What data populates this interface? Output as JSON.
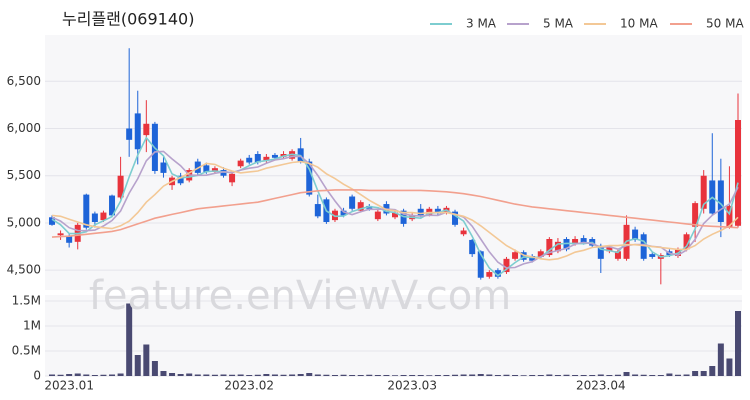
{
  "chart_data": {
    "type": "candlestick",
    "title": "누리플랜(069140)",
    "watermark": "feature.enViewV.com",
    "categories": [
      null,
      null,
      "2023.01",
      null,
      null,
      null,
      null,
      null,
      null,
      null,
      null,
      null,
      null,
      null,
      null,
      null,
      null,
      null,
      null,
      null,
      null,
      null,
      null,
      "2023.02",
      null,
      null,
      null,
      null,
      null,
      null,
      null,
      null,
      null,
      null,
      null,
      null,
      null,
      null,
      null,
      null,
      null,
      null,
      "2023.03",
      null,
      null,
      null,
      null,
      null,
      null,
      null,
      null,
      null,
      null,
      null,
      null,
      null,
      null,
      null,
      null,
      null,
      null,
      null,
      null,
      null,
      "2023.04",
      null,
      null,
      null,
      null,
      null,
      null,
      null,
      null,
      null,
      null,
      null,
      null,
      null,
      null,
      null,
      null
    ],
    "open": [
      5060,
      4870,
      4860,
      4800,
      5300,
      5100,
      5030,
      5290,
      5270,
      6000,
      6160,
      5930,
      6050,
      5640,
      5400,
      5500,
      5450,
      5650,
      5610,
      5540,
      5560,
      5430,
      5600,
      5690,
      5730,
      5660,
      5720,
      5700,
      5680,
      5790,
      5650,
      5200,
      5250,
      5030,
      5130,
      5280,
      5130,
      5180,
      5040,
      5200,
      5060,
      5130,
      5040,
      5150,
      5090,
      5150,
      5110,
      5120,
      4880,
      4820,
      4700,
      4430,
      4500,
      4480,
      4620,
      4690,
      4650,
      4640,
      4660,
      4700,
      4830,
      4780,
      4840,
      4830,
      4760,
      4700,
      4620,
      4620,
      4930,
      4880,
      4670,
      4620,
      4700,
      4650,
      4720,
      4960,
      5150,
      5450,
      5450,
      4960,
      4970
    ],
    "high": [
      5080,
      4920,
      4880,
      5000,
      5310,
      5120,
      5130,
      5300,
      5700,
      6850,
      6400,
      6300,
      6070,
      5700,
      5500,
      5530,
      5580,
      5680,
      5640,
      5600,
      5590,
      5530,
      5680,
      5720,
      5760,
      5730,
      5740,
      5760,
      5780,
      5900,
      5680,
      5300,
      5270,
      5150,
      5160,
      5300,
      5240,
      5200,
      5140,
      5230,
      5130,
      5150,
      5100,
      5200,
      5170,
      5180,
      5180,
      5140,
      4950,
      4830,
      4710,
      4500,
      4520,
      4640,
      4720,
      4710,
      4670,
      4720,
      4850,
      4840,
      4850,
      4860,
      4870,
      4850,
      4780,
      4760,
      4720,
      5080,
      4960,
      4900,
      4690,
      4680,
      4720,
      4740,
      4900,
      5230,
      5560,
      5950,
      5680,
      5600,
      6370
    ],
    "low": [
      4970,
      4820,
      4740,
      4720,
      4930,
      4950,
      5010,
      5070,
      5250,
      5700,
      5620,
      5750,
      5520,
      5480,
      5350,
      5400,
      5430,
      5510,
      5520,
      5520,
      5480,
      5390,
      5580,
      5620,
      5620,
      5640,
      5670,
      5680,
      5660,
      5630,
      5280,
      5050,
      4990,
      5010,
      5060,
      5130,
      5110,
      5130,
      5020,
      5080,
      5040,
      4960,
      5020,
      5060,
      5070,
      5080,
      5090,
      4960,
      4860,
      4640,
      4400,
      4410,
      4410,
      4460,
      4600,
      4590,
      4580,
      4620,
      4640,
      4680,
      4700,
      4760,
      4770,
      4740,
      4470,
      4680,
      4600,
      4600,
      4800,
      4600,
      4620,
      4350,
      4640,
      4630,
      4700,
      4800,
      5100,
      5080,
      4850,
      4940,
      4950
    ],
    "close": [
      4980,
      4890,
      4790,
      4980,
      4950,
      5010,
      5110,
      5080,
      5500,
      5880,
      5780,
      6050,
      5550,
      5530,
      5480,
      5420,
      5560,
      5530,
      5540,
      5580,
      5500,
      5520,
      5660,
      5640,
      5640,
      5700,
      5690,
      5730,
      5760,
      5650,
      5300,
      5070,
      5010,
      5130,
      5080,
      5150,
      5220,
      5150,
      5120,
      5100,
      5110,
      4990,
      5080,
      5080,
      5150,
      5100,
      5160,
      4980,
      4920,
      4670,
      4420,
      4480,
      4430,
      4620,
      4690,
      4610,
      4600,
      4700,
      4830,
      4800,
      4720,
      4830,
      4790,
      4760,
      4620,
      4740,
      4700,
      4980,
      4820,
      4620,
      4640,
      4660,
      4660,
      4720,
      4880,
      5210,
      5500,
      5100,
      5010,
      5180,
      6090
    ],
    "up_color": "#e8333c",
    "down_color": "#1e64d8",
    "series": [
      {
        "name": "3 MA",
        "color": "#7dcdd0",
        "values": [
          5040,
          4980,
          4887,
          4887,
          4907,
          4980,
          5023,
          5067,
          5230,
          5487,
          5720,
          5903,
          5793,
          5710,
          5520,
          5477,
          5487,
          5503,
          5543,
          5550,
          5540,
          5533,
          5560,
          5607,
          5647,
          5660,
          5677,
          5707,
          5727,
          5713,
          5570,
          5340,
          5127,
          5070,
          5073,
          5120,
          5150,
          5173,
          5163,
          5123,
          5110,
          5067,
          5060,
          5050,
          5103,
          5110,
          5137,
          5080,
          5020,
          4857,
          4670,
          4523,
          4443,
          4510,
          4580,
          4640,
          4633,
          4637,
          4710,
          4777,
          4783,
          4783,
          4780,
          4793,
          4723,
          4707,
          4687,
          4807,
          4833,
          4807,
          4693,
          4640,
          4653,
          4680,
          4753,
          4937,
          5197,
          5270,
          5203,
          5097,
          5427
        ]
      },
      {
        "name": "5 MA",
        "color": "#b7a2cc",
        "values": [
          5060,
          5020,
          4950,
          4920,
          4918,
          4924,
          4968,
          5026,
          5126,
          5316,
          5470,
          5658,
          5752,
          5758,
          5678,
          5606,
          5508,
          5504,
          5506,
          5526,
          5542,
          5534,
          5560,
          5580,
          5592,
          5632,
          5666,
          5680,
          5704,
          5706,
          5626,
          5502,
          5358,
          5232,
          5118,
          5088,
          5118,
          5146,
          5144,
          5148,
          5140,
          5094,
          5080,
          5072,
          5082,
          5080,
          5114,
          5094,
          5062,
          4966,
          4830,
          4694,
          4584,
          4524,
          4528,
          4566,
          4590,
          4644,
          4686,
          4708,
          4730,
          4776,
          4794,
          4780,
          4744,
          4748,
          4722,
          4760,
          4772,
          4772,
          4752,
          4744,
          4680,
          4660,
          4712,
          4826,
          4994,
          5082,
          5142,
          5200,
          5378
        ]
      },
      {
        "name": "10 MA",
        "color": "#f3c896",
        "values": [
          5080,
          5070,
          5040,
          5010,
          4980,
          4960,
          4950,
          4940,
          4970,
          5020,
          5110,
          5220,
          5300,
          5390,
          5440,
          5480,
          5530,
          5580,
          5630,
          5620,
          5580,
          5550,
          5530,
          5540,
          5550,
          5580,
          5600,
          5620,
          5640,
          5650,
          5630,
          5590,
          5520,
          5470,
          5410,
          5360,
          5300,
          5240,
          5190,
          5140,
          5130,
          5110,
          5110,
          5100,
          5110,
          5110,
          5110,
          5090,
          5070,
          5030,
          4970,
          4900,
          4830,
          4760,
          4710,
          4660,
          4640,
          4620,
          4610,
          4620,
          4650,
          4690,
          4710,
          4740,
          4750,
          4760,
          4760,
          4770,
          4770,
          4760,
          4750,
          4740,
          4730,
          4720,
          4720,
          4760,
          4830,
          4880,
          4920,
          4970,
          5060
        ]
      },
      {
        "name": "50 MA",
        "color": "#f2a08e",
        "values": [
          4850,
          4855,
          4860,
          4870,
          4880,
          4890,
          4900,
          4910,
          4930,
          4960,
          4990,
          5020,
          5050,
          5070,
          5090,
          5110,
          5130,
          5150,
          5160,
          5170,
          5180,
          5190,
          5200,
          5210,
          5220,
          5240,
          5260,
          5280,
          5300,
          5320,
          5330,
          5340,
          5345,
          5350,
          5350,
          5350,
          5350,
          5345,
          5345,
          5345,
          5345,
          5345,
          5345,
          5345,
          5340,
          5335,
          5330,
          5320,
          5310,
          5295,
          5280,
          5260,
          5240,
          5220,
          5200,
          5185,
          5170,
          5160,
          5150,
          5140,
          5130,
          5120,
          5110,
          5100,
          5090,
          5080,
          5070,
          5060,
          5050,
          5040,
          5030,
          5020,
          5010,
          5000,
          4990,
          4980,
          4970,
          4965,
          4960,
          4955,
          4950
        ]
      }
    ],
    "ylim": [
      4290,
      6990
    ],
    "yticks": [
      {
        "value": 4500,
        "label": "4,500"
      },
      {
        "value": 5000,
        "label": "5,000"
      },
      {
        "value": 5500,
        "label": "5,500"
      },
      {
        "value": 6000,
        "label": "6,000"
      },
      {
        "value": 6500,
        "label": "6,500"
      }
    ],
    "grid": true,
    "legend": "top-right",
    "volume": {
      "color": "#4a4a72",
      "values": [
        30000,
        25000,
        40000,
        50000,
        30000,
        20000,
        25000,
        30000,
        50000,
        1450000,
        420000,
        630000,
        300000,
        100000,
        60000,
        40000,
        50000,
        30000,
        30000,
        25000,
        30000,
        25000,
        30000,
        20000,
        25000,
        40000,
        30000,
        25000,
        30000,
        40000,
        60000,
        30000,
        25000,
        20000,
        25000,
        20000,
        20000,
        25000,
        20000,
        20000,
        15000,
        20000,
        20000,
        20000,
        15000,
        20000,
        20000,
        25000,
        30000,
        30000,
        40000,
        30000,
        20000,
        25000,
        20000,
        15000,
        20000,
        20000,
        30000,
        20000,
        25000,
        20000,
        20000,
        20000,
        30000,
        20000,
        25000,
        80000,
        30000,
        25000,
        20000,
        20000,
        50000,
        25000,
        30000,
        100000,
        100000,
        200000,
        650000,
        350000,
        1300000
      ],
      "ylim": [
        0,
        1620000
      ],
      "yticks": [
        0,
        {
          "value": 500000,
          "label": "0.5M"
        },
        {
          "value": 1000000,
          "label": "1M"
        },
        {
          "value": 1500000,
          "label": "1.5M"
        }
      ]
    }
  }
}
